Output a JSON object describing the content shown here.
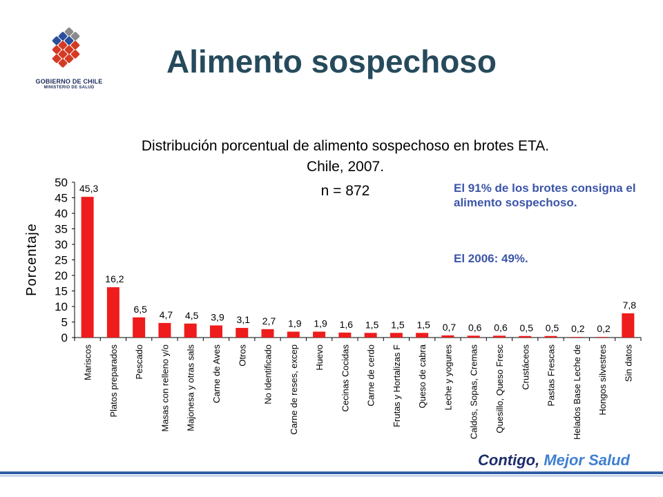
{
  "logo": {
    "line1": "GOBIERNO DE CHILE",
    "line2": "MINISTERIO DE SALUD",
    "colors": [
      "#2a4f9c",
      "#d53a24",
      "#8a8a8a"
    ]
  },
  "page_title": "Alimento sospechoso",
  "chart_data": {
    "type": "bar",
    "title_line1": "Distribución porcentual de alimento sospechoso en brotes ETA.",
    "title_line2": "Chile,   2007.",
    "subtitle": "n = 872",
    "ylabel": "Porcentaje",
    "xlabel": "",
    "ylim": [
      0,
      50
    ],
    "yticks": [
      0,
      5,
      10,
      15,
      20,
      25,
      30,
      35,
      40,
      45,
      50
    ],
    "categories": [
      "Mariscos",
      "Platos preparados",
      "Pescado",
      "Masas con relleno y/o",
      "Majonesa y otras sals",
      "Carne de Aves",
      "Otros",
      "No Identificado",
      "Carne de reses, excep",
      "Huevo",
      "Cecinas Cocidas",
      "Carne de cerdo",
      "Frutas y Hortalizas F",
      "Queso de cabra",
      "Leche y yogures",
      "Caldos, Sopas, Cremas",
      "Quesillo, Queso Fresc",
      "Crustáceos",
      "Pastas Frescas",
      "Helados Base Leche de",
      "Hongos silvestres",
      "Sin datos"
    ],
    "values": [
      45.3,
      16.2,
      6.5,
      4.7,
      4.5,
      3.9,
      3.1,
      2.7,
      1.9,
      1.9,
      1.6,
      1.5,
      1.5,
      1.5,
      0.7,
      0.6,
      0.6,
      0.5,
      0.5,
      0.2,
      0.2,
      7.8
    ],
    "value_labels": [
      "45,3",
      "16,2",
      "6,5",
      "4,7",
      "4,5",
      "3,9",
      "3,1",
      "2,7",
      "1,9",
      "1,9",
      "1,6",
      "1,5",
      "1,5",
      "1,5",
      "0,7",
      "0,6",
      "0,6",
      "0,5",
      "0,5",
      "0,2",
      "0,2",
      "7,8"
    ],
    "bar_color": "#ee1c1c",
    "grid": false,
    "legend": "none"
  },
  "notes": {
    "line1": "El 91% de los brotes consigna el alimento sospechoso.",
    "line2": "El 2006:  49%."
  },
  "footer": {
    "slogan_part1": "Contigo, ",
    "slogan_part2": "Mejor Salud",
    "bar_color": "#2f5ea6"
  }
}
